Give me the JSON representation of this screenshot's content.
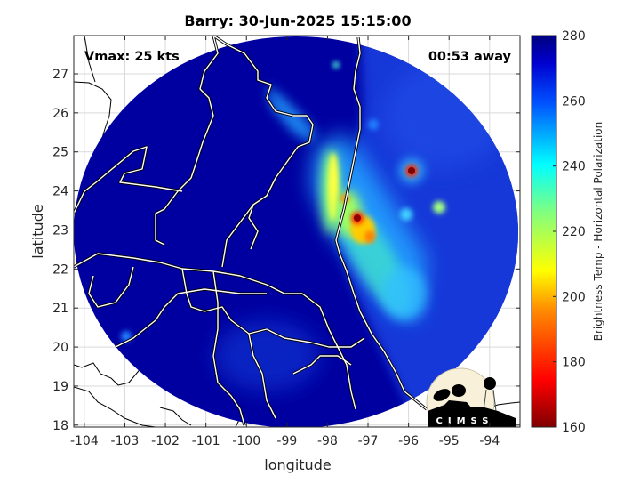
{
  "title": "Barry: 30-Jun-2025 15:15:00",
  "annotations": {
    "vmax": "Vmax: 25 kts",
    "time_away": "00:53 away"
  },
  "axes": {
    "xlabel": "longitude",
    "ylabel": "latitude",
    "xticks": [
      "-104",
      "-103",
      "-102",
      "-101",
      "-100",
      "-99",
      "-98",
      "-97",
      "-96",
      "-95",
      "-94"
    ],
    "xtick_values": [
      -104,
      -103,
      -102,
      -101,
      -100,
      -99,
      -98,
      -97,
      -96,
      -95,
      -94
    ],
    "yticks": [
      "18",
      "19",
      "20",
      "21",
      "22",
      "23",
      "24",
      "25",
      "26",
      "27"
    ],
    "ytick_values": [
      18,
      19,
      20,
      21,
      22,
      23,
      24,
      25,
      26,
      27
    ],
    "xlim": [
      -104.26,
      -93.25
    ],
    "ylim": [
      17.95,
      27.98
    ],
    "grid": true
  },
  "colorbar": {
    "label": "Brightness Temp - Horizontal Polarization",
    "ticks": [
      "160",
      "180",
      "200",
      "220",
      "240",
      "260",
      "280"
    ],
    "tick_values": [
      160,
      180,
      200,
      220,
      240,
      260,
      280
    ],
    "range": [
      160,
      280
    ],
    "colormap": "jet"
  },
  "logo": {
    "text": "CIMSS"
  },
  "colors": {
    "cold_background": "#0000a0",
    "ocean_background": "#1030d8",
    "coastline": "#ffffff",
    "borders": "#000000"
  }
}
